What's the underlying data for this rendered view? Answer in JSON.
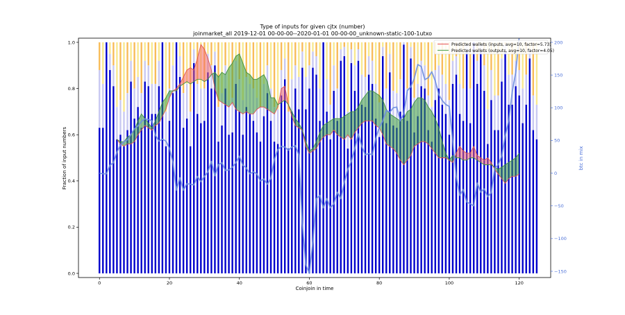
{
  "chart_data": {
    "type": "bar",
    "title": "Type of inputs for given cjtx (number)",
    "subtitle": "joinmarket_all 2019-12-01 00-00-00--2020-01-01 00-00-00_unknown-static-100-1utxo",
    "xlabel": "Coinjoin in time",
    "ylabel": "Fraction of input numbers",
    "y2label": "btc in mix",
    "xlim": [
      -6,
      129
    ],
    "ylim": [
      0,
      1
    ],
    "y2lim": [
      -160,
      200
    ],
    "x_ticks": [
      "0",
      "20",
      "40",
      "60",
      "80",
      "100",
      "120"
    ],
    "y_ticks": [
      "0.0",
      "0.2",
      "0.4",
      "0.6",
      "0.8",
      "1.0"
    ],
    "y2_ticks": [
      "−150",
      "−100",
      "−50",
      "0",
      "50",
      "100",
      "150",
      "200"
    ],
    "legend_position": "top-right",
    "legend": [
      {
        "name": "Predicted wallets (inputs, avg=10, factor=5.73)",
        "color": "#e8696b"
      },
      {
        "name": "Predicted wallets (outputs, avg=10, factor=4.05)",
        "color": "#5aa85a"
      }
    ],
    "colors": {
      "dark_bar": "#0000cc",
      "light_bar": "#c9c9f2",
      "orange_bar": "#f5a623",
      "yellow_bar": "#f7e26b",
      "mix_line": "#6f8fe0",
      "inputs_fill": "#f2686a",
      "outputs_fill": "#3c9d3c"
    },
    "dark_bar_top": [
      0.63,
      0.63,
      1.0,
      0.88,
      0.81,
      0.58,
      0.6,
      0.55,
      0.62,
      0.83,
      0.67,
      0.72,
      0.63,
      0.83,
      0.81,
      0.69,
      0.69,
      0.81,
      1.0,
      0.55,
      0.66,
      0.78,
      1.0,
      0.85,
      0.63,
      0.67,
      0.55,
      0.91,
      0.69,
      0.65,
      0.66,
      0.87,
      0.8,
      0.9,
      0.57,
      0.64,
      0.8,
      0.6,
      0.61,
      0.82,
      0.7,
      0.6,
      0.72,
      0.69,
      0.66,
      0.61,
      0.57,
      0.68,
      0.78,
      0.66,
      0.57,
      0.56,
      0.77,
      0.84,
      0.54,
      0.7,
      0.8,
      0.71,
      0.89,
      0.71,
      0.8,
      0.89,
      0.86,
      0.66,
      1.0,
      0.7,
      0.58,
      0.79,
      0.66,
      0.92,
      0.94,
      0.54,
      0.91,
      0.79,
      0.92,
      0.73,
      0.72,
      0.86,
      0.82,
      0.67,
      0.59,
      0.94,
      0.65,
      0.87,
      0.64,
      0.63,
      0.7,
      0.99,
      0.66,
      0.93,
      0.61,
      0.68,
      0.81,
      0.8,
      0.62,
      0.57,
      0.75,
      0.8,
      0.73,
      0.69,
      0.6,
      0.82,
      0.86,
      0.69,
      0.66,
      0.96,
      0.65,
      1.0,
      0.82,
      0.96,
      0.79,
      0.56,
      0.75,
      0.62,
      0.62,
      0.83,
      0.96,
      0.73,
      0.73,
      0.81,
      0.77,
      0.65,
      0.73,
      0.93,
      0.62,
      0.58
    ],
    "light_bar_top": [
      0.88,
      0.82,
      1.0,
      0.95,
      0.9,
      0.72,
      0.75,
      0.7,
      0.78,
      0.92,
      0.8,
      0.85,
      0.78,
      0.92,
      0.9,
      0.82,
      0.82,
      0.92,
      1.0,
      0.7,
      0.8,
      0.9,
      1.0,
      0.94,
      0.78,
      0.82,
      0.7,
      0.97,
      0.82,
      0.8,
      0.8,
      0.95,
      0.9,
      0.96,
      0.72,
      0.78,
      0.9,
      0.75,
      0.76,
      0.92,
      0.84,
      0.75,
      0.85,
      0.82,
      0.8,
      0.76,
      0.72,
      0.82,
      0.9,
      0.8,
      0.72,
      0.71,
      0.88,
      0.93,
      0.7,
      0.84,
      0.9,
      0.85,
      0.96,
      0.85,
      0.9,
      0.96,
      0.94,
      0.8,
      1.0,
      0.84,
      0.73,
      0.9,
      0.8,
      0.97,
      0.98,
      0.7,
      0.97,
      0.9,
      0.97,
      0.86,
      0.85,
      0.94,
      0.92,
      0.82,
      0.74,
      0.98,
      0.8,
      0.95,
      0.79,
      0.78,
      0.84,
      1.0,
      0.8,
      0.98,
      0.76,
      0.82,
      0.92,
      0.9,
      0.77,
      0.72,
      0.88,
      0.9,
      0.86,
      0.82,
      0.75,
      0.92,
      0.94,
      0.82,
      0.8,
      0.99,
      0.8,
      1.0,
      0.92,
      0.99,
      0.9,
      0.71,
      0.88,
      0.77,
      0.77,
      0.93,
      0.99,
      0.86,
      0.86,
      0.92,
      0.88,
      0.8,
      0.86,
      0.97,
      0.77,
      0.73
    ],
    "mix_btc": [
      0,
      -1,
      -1,
      12,
      16,
      32,
      43,
      48,
      51,
      59,
      68,
      72,
      79,
      83,
      82,
      80,
      58,
      49,
      52,
      49,
      38,
      17,
      -26,
      -7,
      -26,
      -16,
      -17,
      -18,
      -5,
      -13,
      -5,
      2,
      18,
      -4,
      13,
      16,
      4,
      5,
      9,
      16,
      26,
      12,
      8,
      -1,
      2,
      -1,
      -12,
      -9,
      -17,
      -8,
      21,
      36,
      41,
      40,
      35,
      40,
      42,
      28,
      -77,
      -140,
      -153,
      -106,
      -39,
      -34,
      -53,
      -39,
      -53,
      -47,
      -29,
      -39,
      -14,
      6,
      18,
      38,
      60,
      41,
      28,
      30,
      28,
      53,
      70,
      80,
      96,
      93,
      100,
      101,
      80,
      91,
      126,
      132,
      145,
      166,
      163,
      143,
      146,
      155,
      141,
      120,
      111,
      105,
      102,
      49,
      -5,
      -34,
      -25,
      -44,
      -47,
      -50,
      -15,
      -29,
      -24,
      -36,
      -30,
      7,
      13,
      26,
      57,
      80,
      124,
      154,
      208
    ],
    "inputs_band_x": [
      5,
      6,
      7,
      8,
      9,
      10,
      11,
      12,
      13,
      14,
      15,
      16,
      17,
      18,
      19,
      20,
      21,
      22,
      23,
      24,
      25,
      26,
      27,
      28,
      29,
      30,
      31,
      32,
      33,
      34,
      35,
      36,
      37,
      38,
      39,
      40,
      41,
      42,
      43,
      44,
      45,
      46,
      47,
      48,
      49,
      50,
      51,
      52,
      53,
      54,
      55,
      56,
      57,
      58,
      59,
      60,
      61,
      62,
      63,
      64,
      65,
      66,
      67,
      68,
      69,
      70,
      71,
      72,
      73,
      74,
      75,
      76,
      77,
      78,
      79,
      80,
      81,
      82,
      83,
      84,
      85,
      86,
      87,
      88,
      89,
      90,
      91,
      92,
      93,
      94,
      95,
      96,
      97,
      98,
      99,
      100,
      101,
      102,
      103,
      104,
      105,
      106,
      107,
      108,
      109,
      110,
      111,
      112,
      113,
      114,
      115,
      116,
      117,
      118,
      119,
      120
    ],
    "inputs_band_y": [
      0.58,
      0.56,
      0.55,
      0.56,
      0.56,
      0.57,
      0.6,
      0.62,
      0.64,
      0.63,
      0.62,
      0.64,
      0.65,
      0.68,
      0.71,
      0.76,
      0.79,
      0.8,
      0.82,
      0.85,
      0.88,
      0.89,
      0.88,
      0.93,
      0.99,
      0.97,
      0.93,
      0.88,
      0.8,
      0.75,
      0.74,
      0.73,
      0.72,
      0.74,
      0.71,
      0.7,
      0.69,
      0.7,
      0.69,
      0.69,
      0.71,
      0.72,
      0.72,
      0.71,
      0.7,
      0.69,
      0.72,
      0.8,
      0.81,
      0.73,
      0.68,
      0.64,
      0.63,
      0.62,
      0.55,
      0.52,
      0.53,
      0.54,
      0.57,
      0.59,
      0.6,
      0.6,
      0.62,
      0.6,
      0.59,
      0.58,
      0.6,
      0.58,
      0.61,
      0.63,
      0.65,
      0.66,
      0.66,
      0.66,
      0.64,
      0.63,
      0.6,
      0.56,
      0.55,
      0.54,
      0.52,
      0.49,
      0.47,
      0.49,
      0.51,
      0.55,
      0.56,
      0.57,
      0.57,
      0.56,
      0.54,
      0.52,
      0.5,
      0.5,
      0.5,
      0.49,
      0.48,
      0.52,
      0.55,
      0.53,
      0.52,
      0.52,
      0.55,
      0.51,
      0.5,
      0.49,
      0.5,
      0.48,
      0.45,
      0.43,
      0.41,
      0.39,
      0.41,
      0.42,
      0.42,
      0.43
    ],
    "outputs_band_y": [
      0.58,
      0.57,
      0.57,
      0.59,
      0.6,
      0.62,
      0.66,
      0.69,
      0.67,
      0.65,
      0.63,
      0.66,
      0.7,
      0.74,
      0.76,
      0.79,
      0.79,
      0.79,
      0.81,
      0.82,
      0.83,
      0.82,
      0.83,
      0.84,
      0.84,
      0.83,
      0.84,
      0.86,
      0.87,
      0.85,
      0.87,
      0.86,
      0.89,
      0.91,
      0.94,
      0.95,
      0.91,
      0.87,
      0.86,
      0.84,
      0.84,
      0.85,
      0.86,
      0.83,
      0.76,
      0.76,
      0.73,
      0.74,
      0.75,
      0.73,
      0.7,
      0.67,
      0.65,
      0.62,
      0.57,
      0.53,
      0.54,
      0.57,
      0.61,
      0.64,
      0.65,
      0.66,
      0.67,
      0.67,
      0.67,
      0.68,
      0.69,
      0.7,
      0.7,
      0.72,
      0.75,
      0.77,
      0.79,
      0.79,
      0.78,
      0.77,
      0.75,
      0.71,
      0.69,
      0.68,
      0.67,
      0.66,
      0.67,
      0.7,
      0.71,
      0.74,
      0.76,
      0.76,
      0.75,
      0.72,
      0.7,
      0.67,
      0.63,
      0.57,
      0.52,
      0.49,
      0.51,
      0.5,
      0.5,
      0.49,
      0.49,
      0.5,
      0.5,
      0.49,
      0.48,
      0.47,
      0.47,
      0.47,
      0.46,
      0.45,
      0.46,
      0.47,
      0.48,
      0.49,
      0.5,
      0.52
    ]
  }
}
